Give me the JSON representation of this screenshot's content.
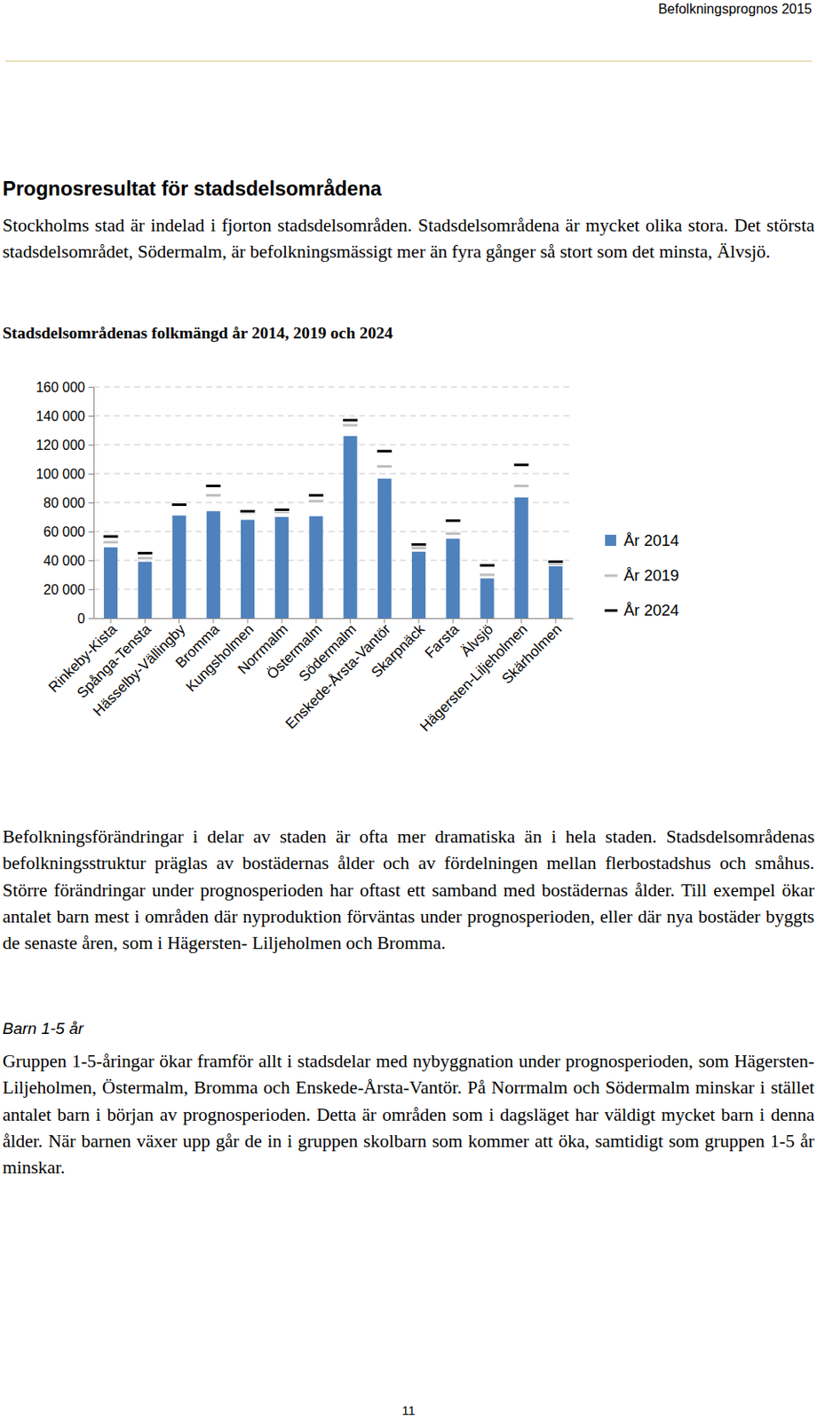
{
  "header": "Befolkningsprognos 2015",
  "heading": "Prognosresultat för stadsdelsområdena",
  "intro": "Stockholms stad är indelad i fjorton stadsdelsområden. Stadsdelsområdena är mycket olika stora. Det största stadsdelsområdet, Södermalm, är befolkningsmässigt mer än fyra gånger så stort som det minsta, Älvsjö.",
  "chart_data": {
    "type": "bar",
    "title": "Stadsdelsområdenas folkmängd år 2014, 2019 och 2024",
    "categories": [
      "Rinkeby-Kista",
      "Spånga-Tensta",
      "Hässelby-Vällingby",
      "Bromma",
      "Kungsholmen",
      "Norrmalm",
      "Östermalm",
      "Södermalm",
      "Enskede-Årsta-Vantör",
      "Skarpnäck",
      "Farsta",
      "Älvsjö",
      "Hägersten-Liljeholmen",
      "Skärholmen"
    ],
    "series": [
      {
        "name": "År 2014",
        "type": "bar",
        "color": "#4f81bd",
        "values": [
          49000,
          39000,
          71000,
          74000,
          68000,
          70000,
          70500,
          126000,
          96500,
          46000,
          55000,
          27500,
          83500,
          36000
        ]
      },
      {
        "name": "År 2019",
        "type": "scatter",
        "marker": "dash",
        "color": "#bfbfbf",
        "values": [
          52500,
          41500,
          78000,
          85000,
          73000,
          73500,
          81000,
          133500,
          105000,
          48500,
          58500,
          30000,
          91500,
          37500
        ]
      },
      {
        "name": "År 2024",
        "type": "scatter",
        "marker": "dash",
        "color": "#000000",
        "values": [
          56500,
          45000,
          78500,
          91500,
          74000,
          75000,
          85000,
          137000,
          115500,
          51000,
          67500,
          36500,
          106000,
          39000
        ]
      }
    ],
    "ylim": [
      0,
      160000
    ],
    "yticks": [
      0,
      {
        "value": 20000,
        "label": "20 000"
      },
      {
        "value": 40000,
        "label": "40 000"
      },
      {
        "value": 60000,
        "label": "60 000"
      },
      {
        "value": 80000,
        "label": "80 000"
      },
      {
        "value": 100000,
        "label": "100 000"
      },
      {
        "value": 120000,
        "label": "120 000"
      },
      {
        "value": 140000,
        "label": "140 000"
      },
      {
        "value": 160000,
        "label": "160 000"
      }
    ],
    "grid": true,
    "legend": "right"
  },
  "body": "Befolkningsförändringar i delar av staden är ofta mer dramatiska än i hela staden. Stadsdelsområdenas befolkningsstruktur präglas av bostädernas ålder och av fördelningen mellan flerbostadshus och småhus. Större förändringar under prognosperioden har oftast ett samband med bostädernas ålder. Till exempel ökar antalet barn mest i områden där nyproduktion förväntas under prognosperioden, eller där nya bostäder byggts de senaste åren, som i Hägersten- Liljeholmen och Bromma.",
  "subheading": "Barn 1-5 år",
  "sub_body": "Gruppen 1-5-åringar ökar framför allt i stadsdelar med nybyggnation under prognosperioden, som Hägersten-Liljeholmen, Östermalm, Bromma och Enskede-Årsta-Vantör. På Norrmalm och Södermalm minskar i stället antalet barn i början av prognosperioden. Detta är områden som i dagsläget har väldigt mycket barn i denna ålder. När barnen växer upp går de in i gruppen skolbarn som kommer att öka, samtidigt som gruppen 1-5 år minskar.",
  "page_number": "11"
}
